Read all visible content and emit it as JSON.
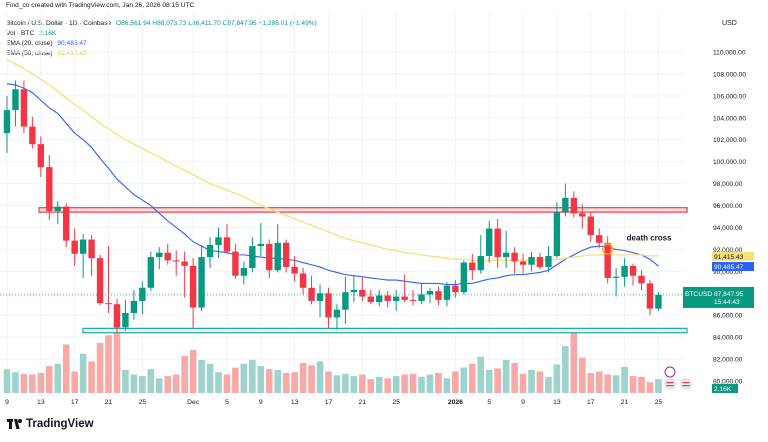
{
  "created_line": "Find_co created with TradingView.com, Jan 26, 2026 08:15 UTC",
  "header": {
    "symbol": "Bitcoin / U.S. Dollar · 1D · Coinbase",
    "ohlc": "O86,561.94 H88,073.73 L86,411.70 C87,847.95 +1,286.01 (+1.49%)",
    "vol_label": "Vol · BTC",
    "vol_value": "2.16K",
    "ema20_label": "EMA (20, close)",
    "ema20_value": "90,485.47",
    "ema50_label": "EMA (50, close)",
    "ema50_value": "91,415.43"
  },
  "currency": "USD",
  "brand": "TradingView",
  "colors": {
    "up": "#089981",
    "down": "#f23645",
    "vol_up": "#9ed2cc",
    "vol_down": "#f7a9a7",
    "ema20": "#2962ff",
    "ema50": "#f5e07a",
    "zone_fill": "#fbe3e2",
    "zone_edge": "#f23645",
    "support_fill": "#dff3ef",
    "support_edge": "#26a69a"
  },
  "chart_data": {
    "type": "candlestick",
    "symbol": "BTCUSD",
    "interval": "1D",
    "ylim": [
      79000,
      112000
    ],
    "y_ticks": [
      80000,
      82000,
      84000,
      86000,
      88000,
      90000,
      92000,
      94000,
      96000,
      98000,
      100000,
      102000,
      104000,
      106000,
      108000,
      110000
    ],
    "y_tick_labels": [
      "80,000.00",
      "82,000.00",
      "84,000.00",
      "86,000.00",
      "88,000.00",
      "90,000.00",
      "92,000.00",
      "94,000.00",
      "96,000.00",
      "98,000.00",
      "100,000.00",
      "102,000.00",
      "104,000.00",
      "106,000.00",
      "108,000.00",
      "110,000.00"
    ],
    "x_ticks": [
      {
        "label": "9",
        "index": 0
      },
      {
        "label": "13",
        "index": 4
      },
      {
        "label": "17",
        "index": 8
      },
      {
        "label": "21",
        "index": 12
      },
      {
        "label": "25",
        "index": 16
      },
      {
        "label": "Dec",
        "index": 22
      },
      {
        "label": "5",
        "index": 26
      },
      {
        "label": "9",
        "index": 30
      },
      {
        "label": "13",
        "index": 34
      },
      {
        "label": "17",
        "index": 38
      },
      {
        "label": "21",
        "index": 42
      },
      {
        "label": "25",
        "index": 46
      },
      {
        "label": "2026",
        "index": 53
      },
      {
        "label": "5",
        "index": 57
      },
      {
        "label": "9",
        "index": 61
      },
      {
        "label": "13",
        "index": 65
      },
      {
        "label": "17",
        "index": 69
      },
      {
        "label": "21",
        "index": 73
      },
      {
        "label": "25",
        "index": 77
      }
    ],
    "candles": [
      [
        102600,
        106000,
        100800,
        104700
      ],
      [
        104700,
        107400,
        103200,
        106600
      ],
      [
        106600,
        107400,
        102600,
        103200
      ],
      [
        103200,
        104100,
        101200,
        101600
      ],
      [
        101600,
        102300,
        98600,
        99500
      ],
      [
        99500,
        100600,
        94700,
        95500
      ],
      [
        95500,
        96400,
        94300,
        95900
      ],
      [
        95900,
        96200,
        92200,
        92800
      ],
      [
        92800,
        93900,
        90500,
        91600
      ],
      [
        91600,
        93400,
        89400,
        92900
      ],
      [
        92900,
        93300,
        89600,
        91200
      ],
      [
        91200,
        91500,
        86900,
        87100
      ],
      [
        87100,
        92300,
        86200,
        87000
      ],
      [
        87000,
        87500,
        84400,
        84900
      ],
      [
        84900,
        87400,
        84600,
        86200
      ],
      [
        86200,
        88300,
        85600,
        87300
      ],
      [
        87300,
        89100,
        86100,
        88500
      ],
      [
        88500,
        91800,
        88200,
        91300
      ],
      [
        91300,
        92200,
        90200,
        91700
      ],
      [
        91700,
        92500,
        90600,
        91000
      ],
      [
        91000,
        91900,
        89600,
        90900
      ],
      [
        90900,
        91800,
        87600,
        90500
      ],
      [
        90500,
        91200,
        84800,
        86700
      ],
      [
        86700,
        92400,
        86400,
        91300
      ],
      [
        91300,
        93100,
        90300,
        92400
      ],
      [
        92400,
        94000,
        91200,
        93100
      ],
      [
        93100,
        94300,
        91600,
        91800
      ],
      [
        91800,
        92500,
        89300,
        89600
      ],
      [
        89600,
        90900,
        88800,
        90300
      ],
      [
        90300,
        93100,
        89900,
        92300
      ],
      [
        92300,
        94400,
        91400,
        92500
      ],
      [
        92500,
        92900,
        89400,
        90100
      ],
      [
        90100,
        94300,
        89900,
        92600
      ],
      [
        92600,
        92900,
        89900,
        90400
      ],
      [
        90400,
        91400,
        89100,
        89800
      ],
      [
        89800,
        90300,
        87900,
        88500
      ],
      [
        88500,
        89600,
        87000,
        87300
      ],
      [
        87300,
        88800,
        85800,
        88000
      ],
      [
        88000,
        88500,
        84800,
        85800
      ],
      [
        85800,
        87000,
        84700,
        86500
      ],
      [
        86500,
        89500,
        85200,
        88100
      ],
      [
        88100,
        89600,
        87200,
        88300
      ],
      [
        88300,
        89400,
        87300,
        87700
      ],
      [
        87700,
        88300,
        87000,
        87200
      ],
      [
        87200,
        88300,
        86800,
        87800
      ],
      [
        87800,
        88200,
        86700,
        87300
      ],
      [
        87300,
        88300,
        86400,
        87700
      ],
      [
        87700,
        89700,
        87200,
        87400
      ],
      [
        87400,
        88300,
        86900,
        87300
      ],
      [
        87300,
        88900,
        87000,
        87900
      ],
      [
        87900,
        88500,
        87100,
        88200
      ],
      [
        88200,
        88600,
        86900,
        87400
      ],
      [
        87400,
        89000,
        86800,
        88700
      ],
      [
        88700,
        89200,
        87600,
        88100
      ],
      [
        88100,
        91000,
        87900,
        90800
      ],
      [
        90800,
        91600,
        89200,
        90100
      ],
      [
        90100,
        93300,
        89800,
        91400
      ],
      [
        91400,
        94600,
        90800,
        93900
      ],
      [
        93900,
        94800,
        90300,
        91300
      ],
      [
        91300,
        93700,
        90300,
        91700
      ],
      [
        91700,
        92200,
        89800,
        90900
      ],
      [
        90900,
        91600,
        89800,
        90600
      ],
      [
        90600,
        91800,
        90000,
        91300
      ],
      [
        91300,
        91700,
        90200,
        90400
      ],
      [
        90400,
        92300,
        89900,
        91400
      ],
      [
        91400,
        96300,
        91200,
        95400
      ],
      [
        95400,
        98000,
        95000,
        96700
      ],
      [
        96700,
        97300,
        94900,
        95300
      ],
      [
        95300,
        96100,
        93900,
        95000
      ],
      [
        95000,
        95400,
        92700,
        93300
      ],
      [
        93300,
        93900,
        92100,
        92600
      ],
      [
        92600,
        93200,
        88900,
        89400
      ],
      [
        89400,
        90300,
        87700,
        89500
      ],
      [
        89500,
        91200,
        88600,
        90500
      ],
      [
        90500,
        90700,
        88700,
        89600
      ],
      [
        89600,
        90100,
        88300,
        88900
      ],
      [
        88900,
        89200,
        86000,
        86600
      ],
      [
        86600,
        88100,
        86400,
        87850
      ]
    ],
    "volume": [
      31,
      27,
      25,
      24,
      26,
      35,
      38,
      63,
      28,
      51,
      41,
      65,
      75,
      93,
      30,
      24,
      22,
      31,
      19,
      22,
      24,
      48,
      56,
      43,
      38,
      27,
      24,
      33,
      38,
      43,
      35,
      31,
      30,
      26,
      27,
      39,
      36,
      41,
      28,
      23,
      25,
      22,
      24,
      18,
      21,
      19,
      22,
      24,
      25,
      21,
      24,
      26,
      19,
      28,
      33,
      38,
      47,
      30,
      32,
      43,
      39,
      25,
      30,
      28,
      21,
      37,
      61,
      82,
      46,
      26,
      28,
      24,
      23,
      34,
      22,
      21,
      14,
      18
    ],
    "series": [
      {
        "name": "EMA (20, close)",
        "values": [
          107100,
          107000,
          106700,
          106300,
          105600,
          104900,
          104400,
          103500,
          102600,
          102000,
          101300,
          100300,
          99400,
          98400,
          97700,
          97000,
          96500,
          96000,
          95300,
          94600,
          94000,
          93400,
          92700,
          92300,
          91900,
          91800,
          91700,
          91500,
          91500,
          91400,
          91300,
          91200,
          91200,
          91100,
          91000,
          90800,
          90600,
          90400,
          90100,
          89900,
          89700,
          89600,
          89500,
          89400,
          89300,
          89200,
          89200,
          89100,
          89000,
          88900,
          88900,
          88900,
          88800,
          88800,
          88900,
          88900,
          89100,
          89300,
          89400,
          89600,
          89700,
          89700,
          89800,
          89900,
          90100,
          90600,
          91100,
          91500,
          91900,
          92200,
          92300,
          92200,
          92000,
          91900,
          91700,
          91500,
          91100,
          90485
        ]
      },
      {
        "name": "EMA (50, close)",
        "values": [
          109300,
          108900,
          108500,
          108000,
          107500,
          107000,
          106400,
          105800,
          105200,
          104700,
          104100,
          103500,
          103000,
          102500,
          102000,
          101600,
          101200,
          100800,
          100400,
          100000,
          99600,
          99200,
          98800,
          98400,
          98000,
          97700,
          97400,
          97100,
          96800,
          96400,
          96000,
          95700,
          95400,
          95100,
          94800,
          94500,
          94200,
          93900,
          93600,
          93300,
          93000,
          92800,
          92600,
          92400,
          92200,
          92000,
          91900,
          91700,
          91600,
          91500,
          91400,
          91300,
          91200,
          91100,
          91100,
          91000,
          91000,
          91000,
          91000,
          91000,
          91000,
          91000,
          91000,
          91000,
          91000,
          91100,
          91200,
          91300,
          91400,
          91500,
          91500,
          91500,
          91500,
          91500,
          91500,
          91500,
          91400,
          91415
        ]
      }
    ],
    "zones": [
      {
        "type": "resistance",
        "from": 95400,
        "to": 95800
      },
      {
        "type": "support",
        "from": 84400,
        "to": 84800
      }
    ],
    "annotation": {
      "text": "death cross",
      "index": 71,
      "price": 92300
    },
    "price_labels": [
      {
        "label": "91,415.43",
        "price": 91415,
        "color": "#f5e07a",
        "text_color": "#131722"
      },
      {
        "label": "90,485.47",
        "price": 90485,
        "color": "#2962ff",
        "text_color": "#ffffff"
      },
      {
        "label": "BTCUSD",
        "price": 87848,
        "color": "#089981",
        "text_color": "#ffffff",
        "lines": [
          "BTCUSD",
          "87,847.95",
          "15:44:43"
        ]
      },
      {
        "label": "2.16K",
        "color": "#089981",
        "text_color": "#ffffff"
      }
    ]
  }
}
